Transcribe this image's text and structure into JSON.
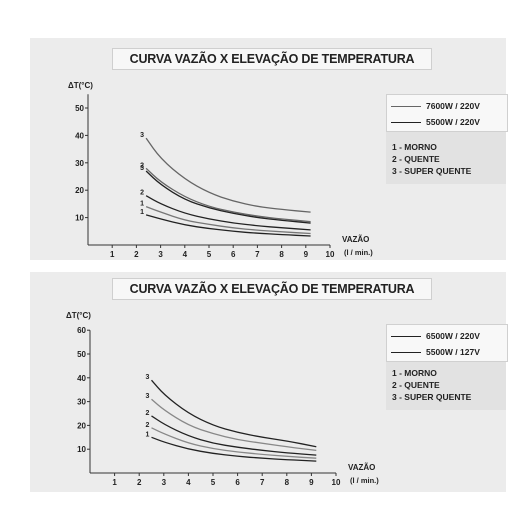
{
  "chart_data": [
    {
      "type": "line",
      "title": "CURVA VAZÃO X ELEVAÇÃO DE TEMPERATURA",
      "ylabel": "ΔT(°C)",
      "xlabel": "VAZÃO",
      "xunit": "(l / min.)",
      "x_ticks": [
        "1",
        "2",
        "3",
        "4",
        "5",
        "6",
        "7",
        "8",
        "9",
        "10"
      ],
      "y_ticks": [
        "10",
        "20",
        "30",
        "40",
        "50"
      ],
      "xlim": [
        0,
        10
      ],
      "ylim": [
        0,
        55
      ],
      "legend": [
        {
          "name": "7600W / 220V",
          "color": "#666666"
        },
        {
          "name": "5500W / 220V",
          "color": "#222222"
        }
      ],
      "levels": [
        "1 - MORNO",
        "2 - QUENTE",
        "3 - SUPER QUENTE"
      ],
      "series": [
        {
          "label": "3",
          "color": "#666666",
          "x": [
            2.4,
            3,
            4,
            5,
            6,
            7,
            8,
            9.2
          ],
          "y": [
            39,
            31.5,
            24,
            19,
            16,
            14,
            13,
            12
          ]
        },
        {
          "label": "2",
          "color": "#666666",
          "x": [
            2.4,
            3,
            4,
            5,
            6,
            7,
            8,
            9.2
          ],
          "y": [
            28,
            23,
            17.5,
            14,
            12,
            10.5,
            9.5,
            8.5
          ]
        },
        {
          "label": "3",
          "color": "#222222",
          "x": [
            2.4,
            3,
            4,
            5,
            6,
            7,
            8,
            9.2
          ],
          "y": [
            27,
            22,
            16.5,
            13.5,
            11.5,
            10,
            9,
            8
          ]
        },
        {
          "label": "2",
          "color": "#222222",
          "x": [
            2.4,
            3,
            4,
            5,
            6,
            7,
            8,
            9.2
          ],
          "y": [
            18,
            15,
            11.5,
            9.5,
            8,
            7,
            6.3,
            5.5
          ]
        },
        {
          "label": "1",
          "color": "#777777",
          "x": [
            2.4,
            3,
            4,
            5,
            6,
            7,
            8,
            9.2
          ],
          "y": [
            14,
            12,
            9,
            7.5,
            6.2,
            5.4,
            4.8,
            4.2
          ]
        },
        {
          "label": "1",
          "color": "#222222",
          "x": [
            2.4,
            3,
            4,
            5,
            6,
            7,
            8,
            9.2
          ],
          "y": [
            11,
            9.5,
            7.3,
            6,
            5,
            4.3,
            3.8,
            3.3
          ]
        }
      ]
    },
    {
      "type": "line",
      "title": "CURVA VAZÃO X ELEVAÇÃO DE TEMPERATURA",
      "ylabel": "ΔT(°C)",
      "xlabel": "VAZÃO",
      "xunit": "(l / min.)",
      "x_ticks": [
        "1",
        "2",
        "3",
        "4",
        "5",
        "6",
        "7",
        "8",
        "9",
        "10"
      ],
      "y_ticks": [
        "10",
        "20",
        "30",
        "40",
        "50",
        "60"
      ],
      "xlim": [
        0,
        10
      ],
      "ylim": [
        0,
        60
      ],
      "legend": [
        {
          "name": "6500W / 220V",
          "color": "#222222"
        },
        {
          "name": "5500W / 127V",
          "color": "#222222"
        }
      ],
      "levels": [
        "1 - MORNO",
        "2 - QUENTE",
        "3 - SUPER QUENTE"
      ],
      "series": [
        {
          "label": "3",
          "color": "#222222",
          "x": [
            2.5,
            3,
            4,
            5,
            6,
            7,
            8,
            9.2
          ],
          "y": [
            39,
            33,
            25,
            20,
            17,
            15,
            13.5,
            11
          ]
        },
        {
          "label": "3",
          "color": "#888888",
          "x": [
            2.5,
            3,
            4,
            5,
            6,
            7,
            8,
            9.2
          ],
          "y": [
            31,
            26.5,
            20,
            16.5,
            14,
            12.5,
            11,
            9.5
          ]
        },
        {
          "label": "2",
          "color": "#222222",
          "x": [
            2.5,
            3,
            4,
            5,
            6,
            7,
            8,
            9.2
          ],
          "y": [
            24,
            20.5,
            15.5,
            12.5,
            10.8,
            9.5,
            8.5,
            7.5
          ]
        },
        {
          "label": "2",
          "color": "#888888",
          "x": [
            2.5,
            3,
            4,
            5,
            6,
            7,
            8,
            9.2
          ],
          "y": [
            19,
            16.5,
            12.5,
            10.2,
            8.8,
            7.8,
            7,
            6.2
          ]
        },
        {
          "label": "1",
          "color": "#222222",
          "x": [
            2.5,
            3,
            4,
            5,
            6,
            7,
            8,
            9.2
          ],
          "y": [
            15,
            13,
            10,
            8.2,
            7,
            6.2,
            5.6,
            5
          ]
        }
      ]
    }
  ]
}
